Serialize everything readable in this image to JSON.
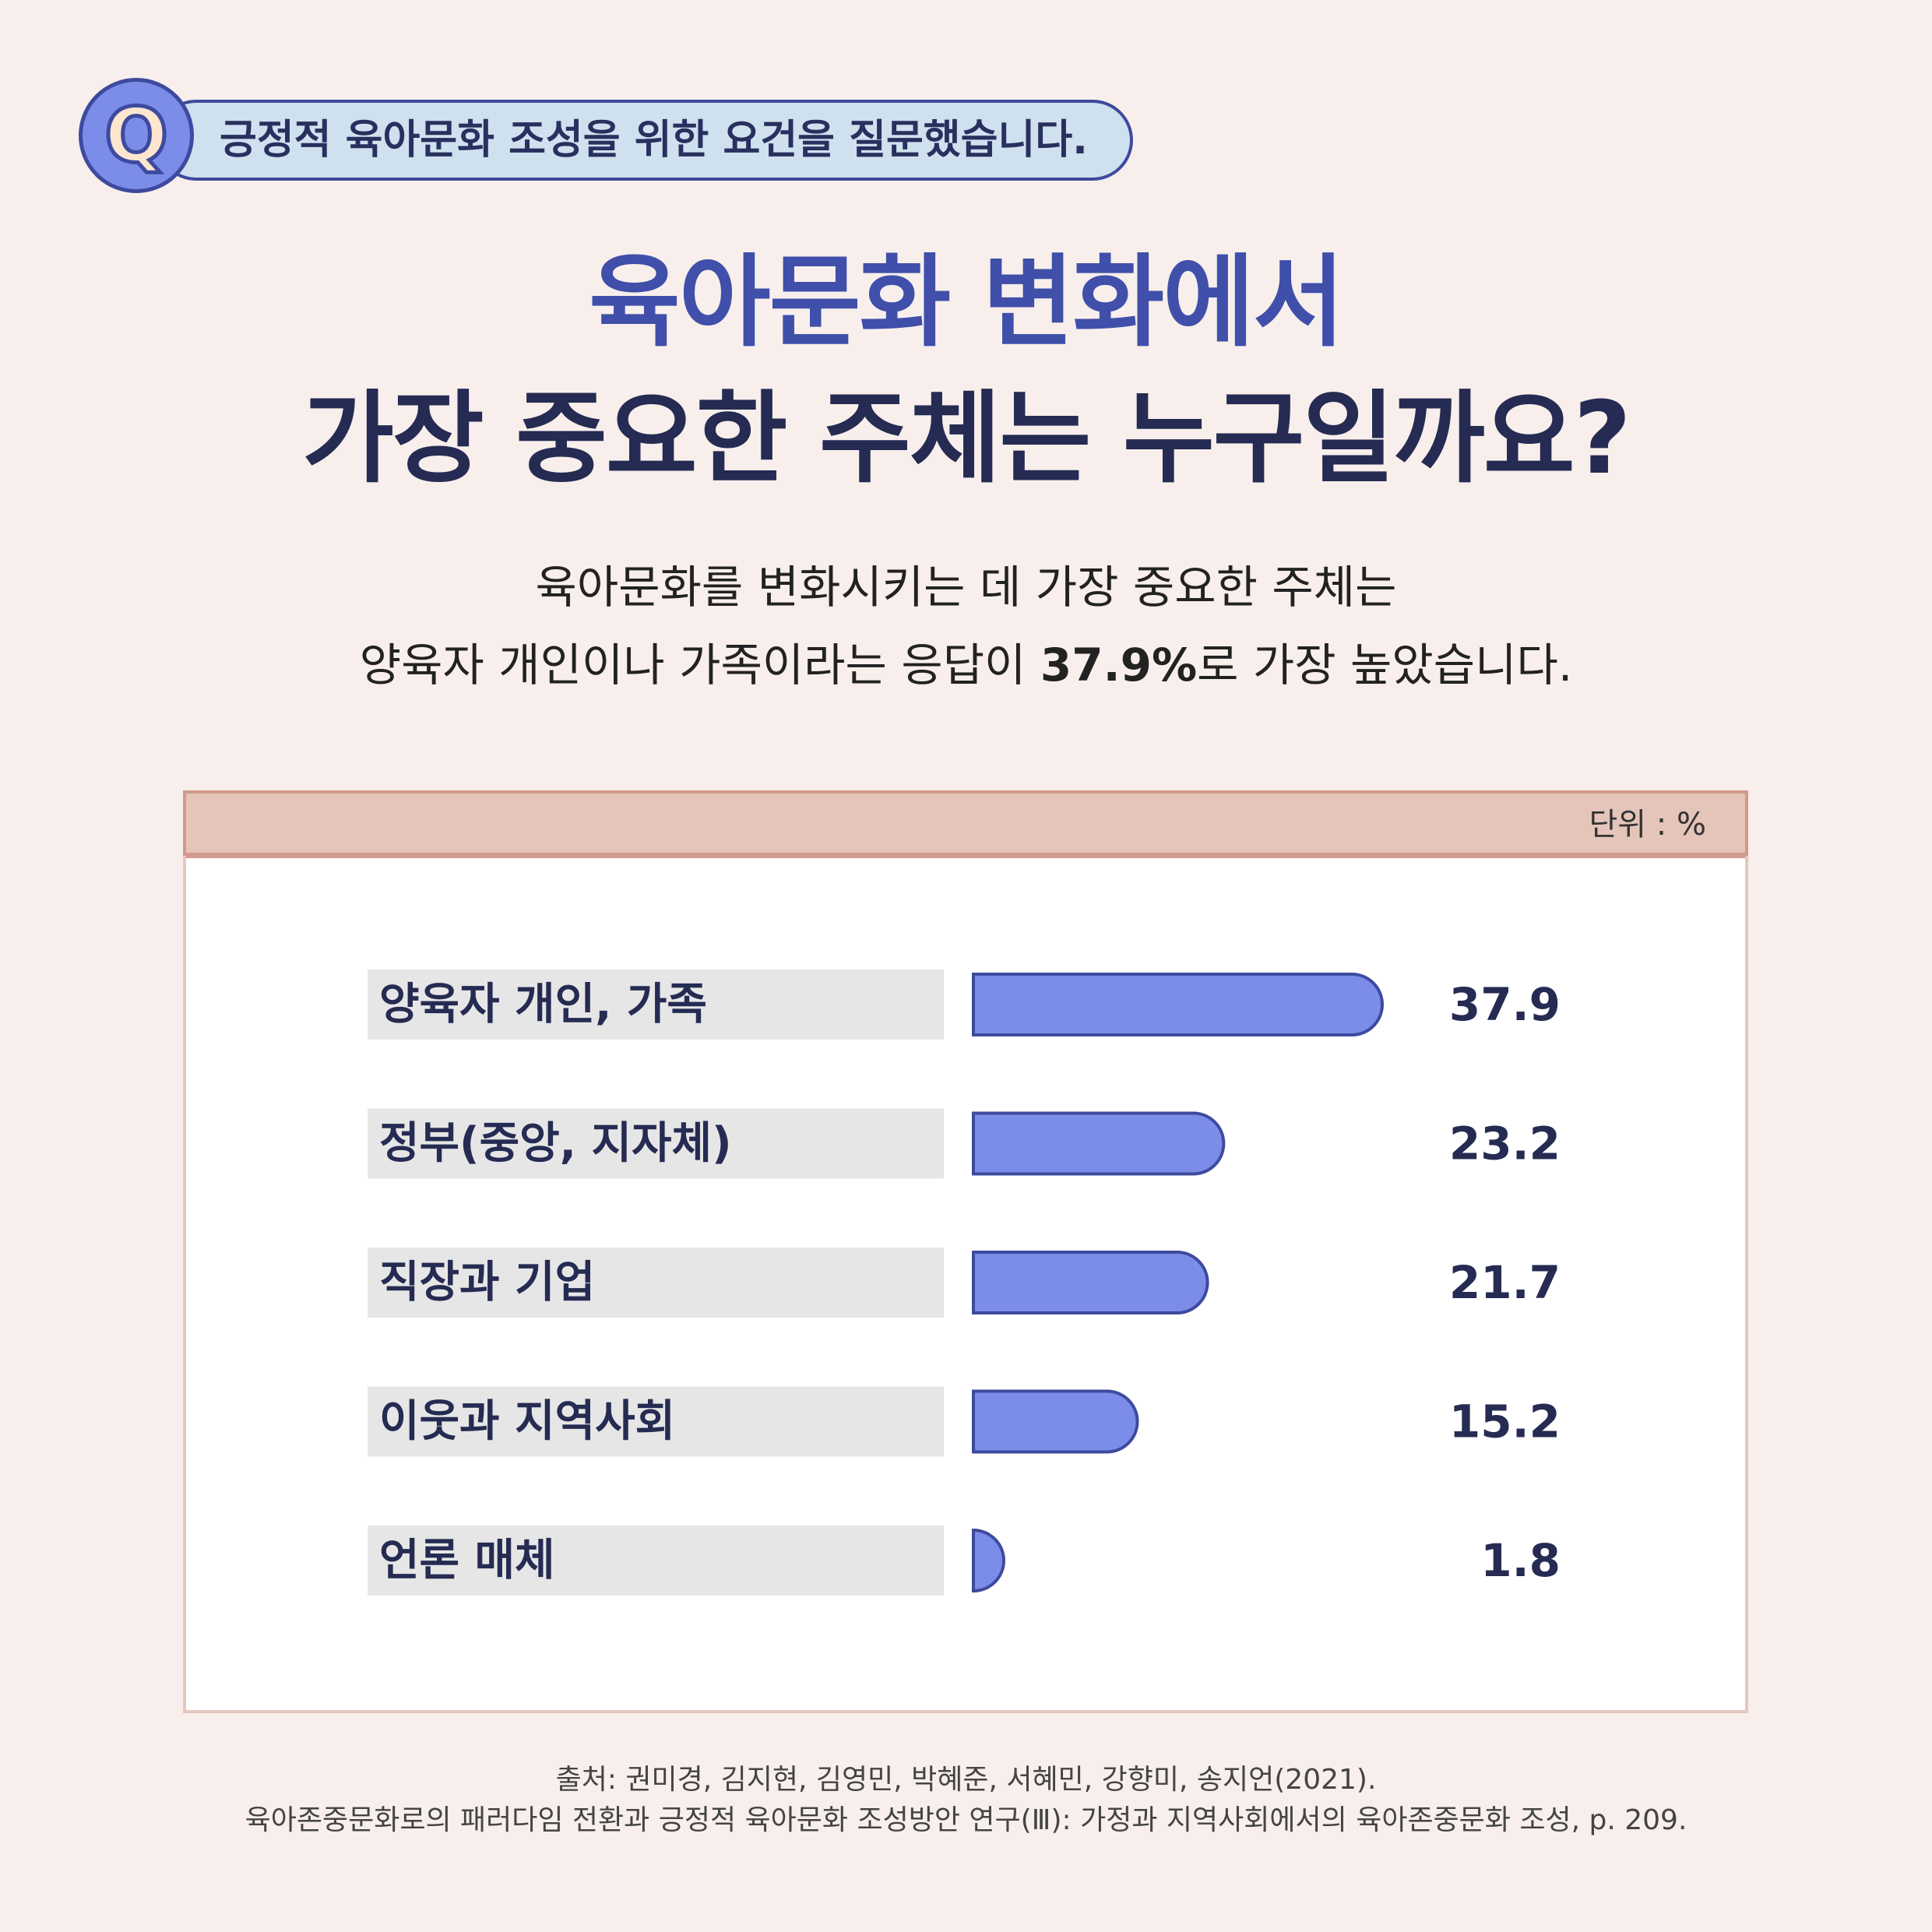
{
  "question": {
    "badge_letter": "Q",
    "text": "긍정적 육아문화 조성을 위한 요건을 질문했습니다."
  },
  "headline": {
    "line1": "육아문화 변화에서",
    "line2": "가장 중요한 주체는 누구일까요?"
  },
  "summary": {
    "line1": "육아문화를 변화시키는 데 가장 중요한 주체는",
    "line2_before": "양육자 개인이나 가족이라는 응답이 ",
    "line2_highlight": "37.9%",
    "line2_after": "로 가장 높았습니다."
  },
  "chart_data": {
    "type": "bar",
    "orientation": "horizontal",
    "unit_label": "단위 : %",
    "categories": [
      "양육자 개인, 가족",
      "정부(중앙, 지자체)",
      "직장과 기업",
      "이웃과 지역사회",
      "언론 매체"
    ],
    "values": [
      37.9,
      23.2,
      21.7,
      15.2,
      1.8
    ],
    "value_labels": [
      "37.9",
      "23.2",
      "21.7",
      "15.2",
      "1.8"
    ],
    "bar_color": "#7b8de8",
    "bar_outline_color": "#3d4a9e",
    "label_bg_color": "#e6e6e6"
  },
  "source": {
    "line1": "출처: 권미경, 김지현, 김영민, 박혜준, 서혜민, 강향미, 송지언(2021).",
    "line2": "육아존중문화로의 패러다임 전환과 긍정적 육아문화 조성방안 연구(Ⅲ): 가정과 지역사회에서의 육아존중문화 조성, p. 209."
  }
}
